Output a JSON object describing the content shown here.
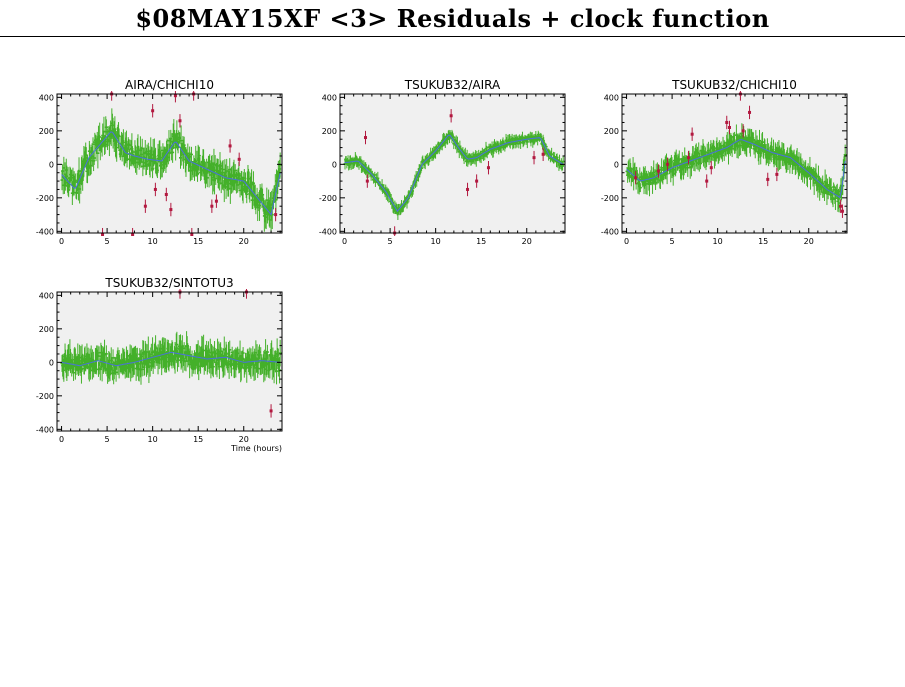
{
  "page": {
    "title": "$08MAY15XF <3> Residuals + clock function"
  },
  "colors": {
    "background": "#f0f0f0",
    "good": "#44b02a",
    "bad": "#b2183f",
    "clock": "#4a6fe0"
  },
  "chart_data": [
    {
      "type": "scatter",
      "title": "AIRA/CHICHI10",
      "xlabel": "",
      "ylabel": "",
      "xlim": [
        -0.5,
        24.2
      ],
      "ylim": [
        -410,
        420
      ],
      "xticks": [
        0,
        5,
        10,
        15,
        20
      ],
      "yticks": [
        -400,
        -200,
        0,
        200,
        400
      ],
      "trend": [
        [
          0,
          -60
        ],
        [
          1.5,
          -150
        ],
        [
          3,
          40
        ],
        [
          5.5,
          200
        ],
        [
          7,
          70
        ],
        [
          8,
          50
        ],
        [
          9.5,
          30
        ],
        [
          11,
          20
        ],
        [
          12.5,
          140
        ],
        [
          14,
          20
        ],
        [
          16,
          -30
        ],
        [
          18,
          -80
        ],
        [
          20,
          -100
        ],
        [
          21.5,
          -200
        ],
        [
          23,
          -300
        ],
        [
          24,
          -50
        ]
      ],
      "noise": 60,
      "error": 70,
      "outliers": [
        [
          4.5,
          -420
        ],
        [
          5.5,
          420
        ],
        [
          7.8,
          -420
        ],
        [
          9.2,
          -250
        ],
        [
          10,
          320
        ],
        [
          10.3,
          -150
        ],
        [
          11.5,
          -180
        ],
        [
          12,
          -270
        ],
        [
          12.5,
          410
        ],
        [
          13,
          260
        ],
        [
          14.3,
          -420
        ],
        [
          14.5,
          420
        ],
        [
          16.5,
          -250
        ],
        [
          17,
          -220
        ],
        [
          18.5,
          110
        ],
        [
          19.5,
          30
        ],
        [
          23.5,
          -300
        ]
      ]
    },
    {
      "type": "scatter",
      "title": "TSUKUB32/AIRA",
      "xlabel": "",
      "ylabel": "",
      "xlim": [
        -0.5,
        24.2
      ],
      "ylim": [
        -410,
        420
      ],
      "xticks": [
        0,
        5,
        10,
        15,
        20
      ],
      "yticks": [
        -400,
        -200,
        0,
        200,
        400
      ],
      "trend": [
        [
          0,
          10
        ],
        [
          1.5,
          20
        ],
        [
          3,
          -60
        ],
        [
          4.5,
          -160
        ],
        [
          5.8,
          -280
        ],
        [
          7,
          -200
        ],
        [
          8.5,
          0
        ],
        [
          10,
          80
        ],
        [
          11.5,
          180
        ],
        [
          12.5,
          100
        ],
        [
          13.5,
          30
        ],
        [
          14.5,
          40
        ],
        [
          16,
          90
        ],
        [
          18,
          130
        ],
        [
          20,
          150
        ],
        [
          21.5,
          160
        ],
        [
          22.5,
          50
        ],
        [
          24,
          0
        ]
      ],
      "noise": 20,
      "error": 30,
      "outliers": [
        [
          2.3,
          160
        ],
        [
          2.5,
          -100
        ],
        [
          5.5,
          -410
        ],
        [
          11.7,
          290
        ],
        [
          13.5,
          -150
        ],
        [
          14.5,
          -100
        ],
        [
          15.8,
          -20
        ],
        [
          20.8,
          40
        ],
        [
          21.8,
          60
        ]
      ]
    },
    {
      "type": "scatter",
      "title": "TSUKUB32/CHICHI10",
      "xlabel": "",
      "ylabel": "",
      "xlim": [
        -0.5,
        24.2
      ],
      "ylim": [
        -410,
        420
      ],
      "xticks": [
        0,
        5,
        10,
        15,
        20
      ],
      "yticks": [
        -400,
        -200,
        0,
        200,
        400
      ],
      "trend": [
        [
          0,
          -30
        ],
        [
          1.5,
          -100
        ],
        [
          3,
          -80
        ],
        [
          5,
          -20
        ],
        [
          7,
          20
        ],
        [
          9,
          60
        ],
        [
          11,
          100
        ],
        [
          12.5,
          150
        ],
        [
          14,
          120
        ],
        [
          16,
          70
        ],
        [
          18,
          40
        ],
        [
          20,
          -50
        ],
        [
          22,
          -150
        ],
        [
          23.5,
          -200
        ],
        [
          24,
          20
        ]
      ],
      "noise": 40,
      "error": 55,
      "outliers": [
        [
          1,
          -80
        ],
        [
          3.5,
          -40
        ],
        [
          4.5,
          0
        ],
        [
          6.8,
          40
        ],
        [
          7.2,
          180
        ],
        [
          8.8,
          -100
        ],
        [
          9.3,
          -20
        ],
        [
          11,
          250
        ],
        [
          11.3,
          220
        ],
        [
          12.5,
          420
        ],
        [
          12.8,
          200
        ],
        [
          13.5,
          310
        ],
        [
          15.5,
          -90
        ],
        [
          16.5,
          -60
        ],
        [
          23.5,
          -250
        ],
        [
          23.7,
          -280
        ]
      ]
    },
    {
      "type": "scatter",
      "title": "TSUKUB32/SINTOTU3",
      "xlabel": "Time (hours)",
      "ylabel": "",
      "xlim": [
        -0.5,
        24.2
      ],
      "ylim": [
        -410,
        420
      ],
      "xticks": [
        0,
        5,
        10,
        15,
        20
      ],
      "yticks": [
        -400,
        -200,
        0,
        200,
        400
      ],
      "trend": [
        [
          0,
          0
        ],
        [
          2,
          -20
        ],
        [
          4,
          10
        ],
        [
          6,
          -20
        ],
        [
          8,
          0
        ],
        [
          10,
          30
        ],
        [
          12,
          60
        ],
        [
          14,
          40
        ],
        [
          16,
          20
        ],
        [
          18,
          30
        ],
        [
          20,
          0
        ],
        [
          22,
          10
        ],
        [
          24,
          0
        ]
      ],
      "noise": 55,
      "error": 70,
      "outliers": [
        [
          13,
          420
        ],
        [
          20.3,
          420
        ],
        [
          23,
          -290
        ]
      ]
    }
  ]
}
